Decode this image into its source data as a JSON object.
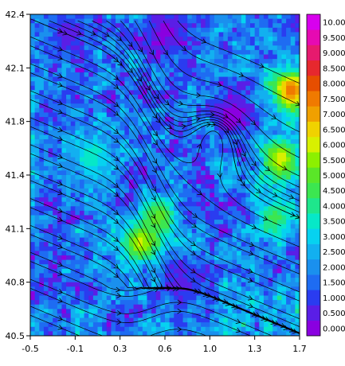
{
  "chart_data": {
    "type": "heatmap",
    "title": "",
    "xlabel": "",
    "ylabel": "",
    "xlim": [
      -0.5,
      1.7
    ],
    "ylim": [
      40.5,
      42.4
    ],
    "x_ticks": [
      "-0.5",
      "-0.1",
      "0.3",
      "0.6",
      "1.0",
      "1.3",
      "1.7"
    ],
    "y_ticks": [
      "40.5",
      "40.8",
      "41.1",
      "41.4",
      "41.8",
      "42.1",
      "42.4"
    ],
    "overlay": "streamlines with arrowheads (wind field)",
    "colorbar": {
      "levels": [
        "0.000",
        "0.500",
        "1.000",
        "1.500",
        "2.000",
        "2.500",
        "3.000",
        "3.500",
        "4.000",
        "4.500",
        "5.000",
        "5.500",
        "6.000",
        "6.500",
        "7.000",
        "7.500",
        "8.000",
        "8.500",
        "9.000",
        "9.500",
        "10.00"
      ],
      "colors": [
        "#8a00e0",
        "#5a1ee6",
        "#2a3cf0",
        "#1e6cf2",
        "#1a90ee",
        "#12b0f0",
        "#06d2f0",
        "#06e8c8",
        "#1ee68c",
        "#3ce650",
        "#5ae628",
        "#8cf000",
        "#d8f000",
        "#f0d200",
        "#f0a000",
        "#f07a00",
        "#e64e00",
        "#e6282e",
        "#e61a6e",
        "#e60ab2",
        "#d800ee"
      ]
    },
    "features": [
      {
        "kind": "calm",
        "x": 1.15,
        "y": 41.8,
        "level": 0.0
      },
      {
        "kind": "jet",
        "x": 0.4,
        "y": 41.05,
        "level": 6.0
      },
      {
        "kind": "jet",
        "x": 0.55,
        "y": 41.2,
        "level": 5.0
      },
      {
        "kind": "jet",
        "x": 0.0,
        "y": 41.55,
        "level": 3.5
      },
      {
        "kind": "gust",
        "x": 1.63,
        "y": 41.95,
        "level": 7.5
      },
      {
        "kind": "gust",
        "x": 1.55,
        "y": 41.55,
        "level": 6.0
      },
      {
        "kind": "gust",
        "x": 1.5,
        "y": 41.2,
        "level": 4.5
      },
      {
        "kind": "calm",
        "x": 0.6,
        "y": 42.3,
        "level": 0.0
      },
      {
        "kind": "calm",
        "x": -0.2,
        "y": 42.3,
        "level": 0.5
      },
      {
        "kind": "calm",
        "x": 0.75,
        "y": 40.8,
        "level": 0.5
      }
    ]
  }
}
